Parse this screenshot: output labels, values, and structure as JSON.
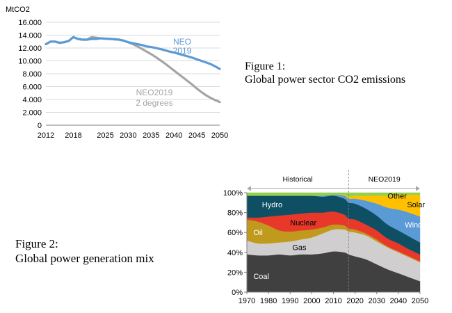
{
  "figure1": {
    "caption_line1": "Figure 1:",
    "caption_line2": "Global power sector CO2 emissions",
    "chart_data": {
      "type": "line",
      "ylabel": "MtCO2",
      "ylim": [
        0,
        16000
      ],
      "yticks": [
        "16.000",
        "14.000",
        "12.000",
        "10.000",
        "8.000",
        "6.000",
        "4.000",
        "2.000",
        "0"
      ],
      "ytick_values": [
        16000,
        14000,
        12000,
        10000,
        8000,
        6000,
        4000,
        2000,
        0
      ],
      "xticks": [
        "2012",
        "2018",
        "2025",
        "2030",
        "2035",
        "2040",
        "2045",
        "2050"
      ],
      "xtick_values": [
        2012,
        2018,
        2025,
        2030,
        2035,
        2040,
        2045,
        2050
      ],
      "xlim": [
        2012,
        2050
      ],
      "grid": true,
      "series": [
        {
          "name": "NEO 2019",
          "label_line1": "NEO",
          "label_line2": "2019",
          "color": "#5b9bd5",
          "x": [
            2012,
            2013,
            2014,
            2015,
            2016,
            2017,
            2018,
            2019,
            2020,
            2021,
            2022,
            2023,
            2024,
            2025,
            2026,
            2027,
            2028,
            2029,
            2030,
            2031,
            2032,
            2033,
            2034,
            2035,
            2036,
            2037,
            2038,
            2039,
            2040,
            2041,
            2042,
            2043,
            2044,
            2045,
            2046,
            2047,
            2048,
            2049,
            2050
          ],
          "values": [
            12600,
            13000,
            13000,
            12800,
            12900,
            13100,
            13700,
            13400,
            13300,
            13300,
            13400,
            13400,
            13500,
            13450,
            13400,
            13350,
            13300,
            13150,
            12900,
            12750,
            12600,
            12450,
            12250,
            12150,
            12000,
            11850,
            11650,
            11450,
            11300,
            11100,
            10900,
            10700,
            10500,
            10250,
            10000,
            9750,
            9500,
            9150,
            8750
          ]
        },
        {
          "name": "NEO2019 2 degrees",
          "label_line1": "NEO2019",
          "label_line2": "2 degrees",
          "color": "#a5a5a5",
          "x": [
            2012,
            2013,
            2014,
            2015,
            2016,
            2017,
            2018,
            2019,
            2020,
            2021,
            2022,
            2023,
            2024,
            2025,
            2026,
            2027,
            2028,
            2029,
            2030,
            2031,
            2032,
            2033,
            2034,
            2035,
            2036,
            2037,
            2038,
            2039,
            2040,
            2041,
            2042,
            2043,
            2044,
            2045,
            2046,
            2047,
            2048,
            2049,
            2050
          ],
          "values": [
            12600,
            13000,
            13000,
            12800,
            12900,
            13100,
            13700,
            13400,
            13300,
            13300,
            13700,
            13600,
            13500,
            13450,
            13400,
            13350,
            13300,
            13150,
            12900,
            12600,
            12250,
            11850,
            11450,
            11050,
            10600,
            10100,
            9600,
            9050,
            8500,
            7950,
            7400,
            6850,
            6300,
            5700,
            5150,
            4650,
            4250,
            3900,
            3600
          ]
        }
      ]
    }
  },
  "figure2": {
    "caption_line1": "Figure 2:",
    "caption_line2": "Global power generation mix",
    "chart_data": {
      "type": "area",
      "stacked": true,
      "ylim": [
        0,
        100
      ],
      "yticks": [
        "100%",
        "80%",
        "60%",
        "40%",
        "20%",
        "0%"
      ],
      "ytick_values": [
        100,
        80,
        60,
        40,
        20,
        0
      ],
      "xticks": [
        "1970",
        "1980",
        "1990",
        "2000",
        "2010",
        "2020",
        "2030",
        "2040",
        "2050"
      ],
      "xtick_values": [
        1970,
        1980,
        1990,
        2000,
        2010,
        2020,
        2030,
        2040,
        2050
      ],
      "xlim": [
        1970,
        2050
      ],
      "split_year": 2017,
      "period_labels": [
        "Historical",
        "NEO2019"
      ],
      "x": [
        1970,
        1975,
        1980,
        1985,
        1990,
        1995,
        2000,
        2005,
        2010,
        2015,
        2017,
        2020,
        2025,
        2030,
        2035,
        2040,
        2045,
        2050
      ],
      "series": [
        {
          "name": "Coal",
          "color": "#404040",
          "label_color": "#ffffff",
          "label_x": 1973,
          "label_y": 16,
          "values": [
            38,
            37,
            37,
            38,
            37,
            38,
            38,
            39,
            41,
            40,
            38,
            36,
            33,
            28,
            23,
            19,
            15,
            11
          ]
        },
        {
          "name": "Gas",
          "color": "#d0cece",
          "label_color": "#000000",
          "label_x": 1991,
          "label_y": 45,
          "values": [
            14,
            12,
            12,
            12,
            14,
            15,
            17,
            20,
            22,
            23,
            23,
            24,
            24,
            23,
            22,
            21,
            20,
            19
          ]
        },
        {
          "name": "Oil",
          "color": "#c09a1d",
          "label_color": "#ffffff",
          "label_x": 1973,
          "label_y": 60,
          "values": [
            21,
            22,
            18,
            12,
            10,
            9,
            8,
            6,
            5,
            4,
            3,
            3,
            2,
            2,
            1,
            1,
            1,
            1
          ]
        },
        {
          "name": "Nuclear",
          "color": "#e8382a",
          "label_color": "#000000",
          "label_x": 1990,
          "label_y": 70,
          "values": [
            2,
            4,
            9,
            15,
            17,
            17,
            17,
            15,
            13,
            11,
            10,
            10,
            9,
            9,
            8,
            8,
            7,
            7
          ]
        },
        {
          "name": "Hydro",
          "color": "#0e4f64",
          "label_color": "#ffffff",
          "label_x": 1977,
          "label_y": 88,
          "values": [
            22,
            22,
            21,
            20,
            19,
            18,
            17,
            16,
            16,
            16,
            16,
            16,
            16,
            15,
            14,
            13,
            13,
            12
          ]
        },
        {
          "name": "Wind",
          "color": "#5b9bd5",
          "label_color": "#ffffff",
          "label_x": 2043,
          "label_y": 68,
          "values": [
            0,
            0,
            0,
            0,
            0,
            0,
            0,
            1,
            1,
            3,
            4,
            5,
            8,
            12,
            17,
            21,
            24,
            26
          ]
        },
        {
          "name": "Solar",
          "color": "#ffc000",
          "label_color": "#000000",
          "label_x": 2044,
          "label_y": 88,
          "values": [
            0,
            0,
            0,
            0,
            0,
            0,
            0,
            0,
            0,
            1,
            2,
            3,
            5,
            8,
            12,
            15,
            18,
            22
          ]
        },
        {
          "name": "Other",
          "color": "#92d050",
          "label_color": "#000000",
          "label_x": 2035,
          "label_y": 97,
          "values": [
            3,
            3,
            3,
            3,
            3,
            3,
            3,
            3,
            2,
            2,
            4,
            3,
            3,
            3,
            3,
            2,
            2,
            2
          ]
        }
      ]
    }
  }
}
